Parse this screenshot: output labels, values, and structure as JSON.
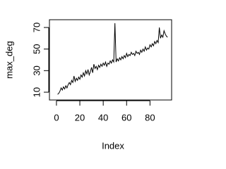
{
  "chart_data": {
    "type": "line",
    "xlabel": "Index",
    "ylabel": "max_deg",
    "x": [
      1,
      2,
      3,
      4,
      5,
      6,
      7,
      8,
      9,
      10,
      11,
      12,
      13,
      14,
      15,
      16,
      17,
      18,
      19,
      20,
      21,
      22,
      23,
      24,
      25,
      26,
      27,
      28,
      29,
      30,
      31,
      32,
      33,
      34,
      35,
      36,
      37,
      38,
      39,
      40,
      41,
      42,
      43,
      44,
      45,
      46,
      47,
      48,
      49,
      50,
      51,
      52,
      53,
      54,
      55,
      56,
      57,
      58,
      59,
      60,
      61,
      62,
      63,
      64,
      65,
      66,
      67,
      68,
      69,
      70,
      71,
      72,
      73,
      74,
      75,
      76,
      77,
      78,
      79,
      80,
      81,
      82,
      83,
      84,
      85,
      86,
      87,
      88,
      89,
      90,
      91,
      92,
      93,
      94,
      95
    ],
    "values": [
      8,
      9,
      11,
      14,
      12,
      15,
      13,
      16,
      14,
      17,
      19,
      17,
      21,
      19,
      25,
      20,
      23,
      21,
      24,
      22,
      26,
      24,
      28,
      25,
      30,
      27,
      31,
      26,
      29,
      33,
      28,
      36,
      32,
      34,
      31,
      35,
      33,
      36,
      34,
      37,
      35,
      38,
      34,
      37,
      36,
      39,
      37,
      40,
      38,
      74,
      38,
      41,
      39,
      42,
      40,
      43,
      41,
      44,
      42,
      46,
      43,
      45,
      44,
      47,
      45,
      46,
      44,
      48,
      46,
      47,
      45,
      49,
      47,
      50,
      48,
      52,
      49,
      51,
      50,
      54,
      52,
      55,
      53,
      57,
      55,
      58,
      56,
      70,
      60,
      63,
      61,
      67,
      64,
      62,
      61
    ],
    "color": "#000000",
    "xlim": [
      -6,
      98.5
    ],
    "xticks": [
      0,
      20,
      40,
      60,
      80
    ],
    "ylim": [
      2.8,
      77.2
    ],
    "yticks": [
      10,
      30,
      50,
      70
    ]
  }
}
